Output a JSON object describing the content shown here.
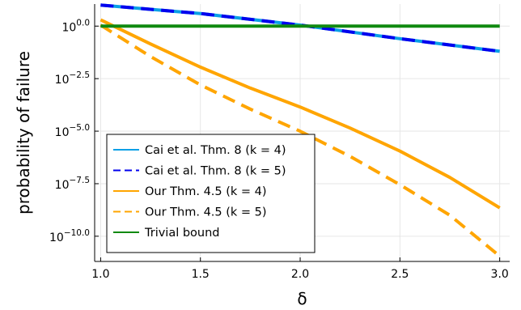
{
  "chart_data": {
    "type": "line",
    "xlabel": "δ",
    "ylabel": "probability of failure",
    "xlim": [
      0.97,
      3.05
    ],
    "ylim_log10": [
      -11.2,
      1.05
    ],
    "y_scale": "log10",
    "grid": true,
    "legend_position": "bottom-left",
    "x_ticks": [
      1.0,
      1.5,
      2.0,
      2.5,
      3.0
    ],
    "x_tick_labels": [
      "1.0",
      "1.5",
      "2.0",
      "2.5",
      "3.0"
    ],
    "y_ticks_log10": [
      0,
      -2.5,
      -5.0,
      -7.5,
      -10.0
    ],
    "y_tick_labels": [
      {
        "base": "10",
        "exp": "0.0"
      },
      {
        "base": "10",
        "exp": "−2.5"
      },
      {
        "base": "10",
        "exp": "−5.0"
      },
      {
        "base": "10",
        "exp": "−7.5"
      },
      {
        "base": "10",
        "exp": "−10.0"
      }
    ],
    "series": [
      {
        "name": "Cai et al. Thm. 8 (k = 4)",
        "color": "#0aa0e6",
        "dash": "solid",
        "x": [
          1.0,
          1.5,
          2.0,
          2.5,
          3.0
        ],
        "log10_y": [
          1.0,
          0.6,
          0.05,
          -0.6,
          -1.2
        ]
      },
      {
        "name": "Cai et al. Thm. 8 (k = 5)",
        "color": "#0000ee",
        "dash": "dashed",
        "x": [
          1.0,
          1.5,
          2.0,
          2.5,
          3.0
        ],
        "log10_y": [
          1.0,
          0.6,
          0.05,
          -0.6,
          -1.2
        ]
      },
      {
        "name": "Our Thm. 4.5 (k = 4)",
        "color": "#ffa500",
        "dash": "solid",
        "x": [
          1.0,
          1.25,
          1.5,
          1.75,
          2.0,
          2.25,
          2.5,
          2.75,
          3.0
        ],
        "log10_y": [
          0.3,
          -0.85,
          -1.95,
          -2.95,
          -3.85,
          -4.85,
          -5.95,
          -7.2,
          -8.65
        ]
      },
      {
        "name": "Our Thm. 4.5 (k = 5)",
        "color": "#ffa500",
        "dash": "dashed",
        "x": [
          1.0,
          1.25,
          1.5,
          1.75,
          2.0,
          2.25,
          2.5,
          2.75,
          3.0
        ],
        "log10_y": [
          0.05,
          -1.45,
          -2.8,
          -3.95,
          -5.0,
          -6.2,
          -7.55,
          -9.0,
          -10.95
        ]
      },
      {
        "name": "Trivial bound",
        "color": "#108a10",
        "dash": "solid",
        "x": [
          1.0,
          3.0
        ],
        "log10_y": [
          0,
          0
        ]
      }
    ]
  }
}
